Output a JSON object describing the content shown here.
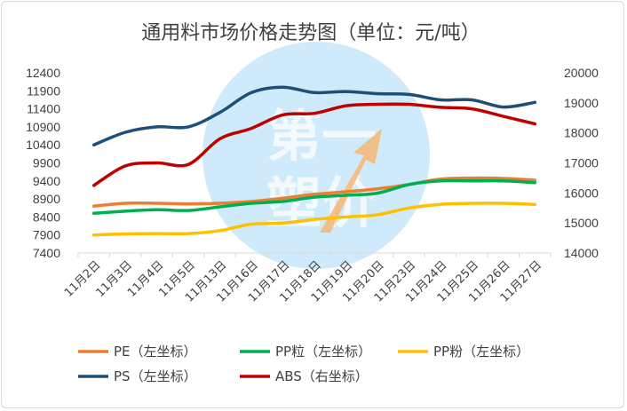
{
  "chart_data": {
    "type": "line",
    "title": "通用料市场价格走势图（单位：元/吨）",
    "categories": [
      "11月2日",
      "11月3日",
      "11月4日",
      "11月5日",
      "11月13日",
      "11月16日",
      "11月17日",
      "11月18日",
      "11月19日",
      "11月20日",
      "11月23日",
      "11月24日",
      "11月25日",
      "11月26日",
      "11月27日"
    ],
    "left_axis": {
      "min": 7400,
      "max": 12400,
      "step": 500,
      "ticks": [
        7400,
        7900,
        8400,
        8900,
        9400,
        9900,
        10400,
        10900,
        11400,
        11900,
        12400
      ]
    },
    "right_axis": {
      "min": 14000,
      "max": 20000,
      "step": 1000,
      "ticks": [
        14000,
        15000,
        16000,
        17000,
        18000,
        19000,
        20000
      ]
    },
    "series": [
      {
        "name": "PE（左坐标）",
        "axis": "left",
        "color": "#ed7d31",
        "values": [
          8700,
          8780,
          8780,
          8760,
          8780,
          8830,
          8920,
          9030,
          9100,
          9180,
          9300,
          9450,
          9480,
          9470,
          9420
        ]
      },
      {
        "name": "PP粒（左坐标）",
        "axis": "left",
        "color": "#00b050",
        "values": [
          8500,
          8560,
          8600,
          8580,
          8680,
          8780,
          8830,
          8950,
          9000,
          9060,
          9300,
          9400,
          9400,
          9400,
          9350
        ]
      },
      {
        "name": "PP粉（左坐标）",
        "axis": "left",
        "color": "#ffc000",
        "values": [
          7900,
          7930,
          7940,
          7940,
          8020,
          8200,
          8230,
          8330,
          8400,
          8460,
          8650,
          8750,
          8780,
          8780,
          8750
        ]
      },
      {
        "name": "PS（左坐标）",
        "axis": "left",
        "color": "#1f4e79",
        "values": [
          10400,
          10750,
          10900,
          10900,
          11300,
          11850,
          12000,
          11850,
          11880,
          11820,
          11800,
          11650,
          11650,
          11450,
          11580
        ]
      },
      {
        "name": "ABS（右坐标）",
        "axis": "right",
        "color": "#c00000",
        "values": [
          16250,
          16900,
          17000,
          16950,
          17800,
          18150,
          18600,
          18650,
          18900,
          18950,
          18950,
          18850,
          18800,
          18550,
          18300
        ]
      }
    ],
    "legend_position": "bottom",
    "grid": false
  },
  "watermark": {
    "lines": [
      "第一",
      "塑价"
    ],
    "color": "#9fd3f4",
    "accent": "#f6a75a"
  }
}
